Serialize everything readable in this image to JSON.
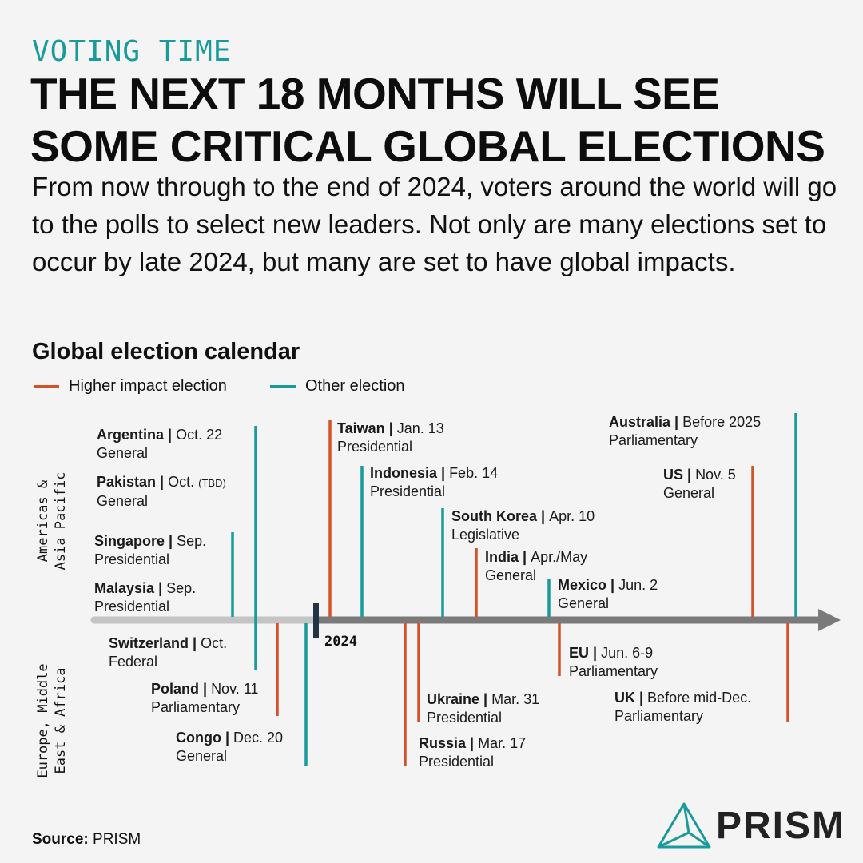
{
  "kicker": "VOTING TIME",
  "headline": {
    "line1": "THE NEXT 18 MONTHS WILL SEE",
    "line2": "SOME CRITICAL GLOBAL ELECTIONS"
  },
  "subtitle": "From now through to the end of 2024, voters around the world will go to the polls to select new leaders. Not only are many elections set to occur by late 2024, but many are set to have global impacts.",
  "calendar_title": "Global election calendar",
  "legend": {
    "higher": "Higher impact election",
    "other": "Other election"
  },
  "colors": {
    "higher": "#d2532a",
    "other": "#1a9a9a",
    "axis_before": "#c4c4c4",
    "axis_after": "#7a7a7a",
    "marker": "#243447"
  },
  "regions": {
    "top": [
      "Americas &",
      "Asia Pacific"
    ],
    "bottom": [
      "Europe, Middle",
      "East & Africa"
    ]
  },
  "year_marker": "2024",
  "elections": [
    {
      "id": "argentina",
      "country": "Argentina",
      "date": "Oct. 22",
      "type": "General",
      "impact": "other",
      "region": "top"
    },
    {
      "id": "pakistan",
      "country": "Pakistan",
      "date": "Oct.",
      "date_note": "(TBD)",
      "type": "General",
      "impact": "other",
      "region": "top"
    },
    {
      "id": "singapore",
      "country": "Singapore",
      "date": "Sep.",
      "type": "Presidential",
      "impact": "other",
      "region": "top"
    },
    {
      "id": "malaysia",
      "country": "Malaysia",
      "date": "Sep.",
      "type": "Presidential",
      "impact": "other",
      "region": "top"
    },
    {
      "id": "taiwan",
      "country": "Taiwan",
      "date": "Jan. 13",
      "type": "Presidential",
      "impact": "higher",
      "region": "top"
    },
    {
      "id": "indonesia",
      "country": "Indonesia",
      "date": "Feb. 14",
      "type": "Presidential",
      "impact": "other",
      "region": "top"
    },
    {
      "id": "south-korea",
      "country": "South Korea",
      "date": "Apr. 10",
      "type": "Legislative",
      "impact": "other",
      "region": "top"
    },
    {
      "id": "india",
      "country": "India",
      "date": "Apr./May",
      "type": "General",
      "impact": "higher",
      "region": "top"
    },
    {
      "id": "mexico",
      "country": "Mexico",
      "date": "Jun. 2",
      "type": "General",
      "impact": "other",
      "region": "top"
    },
    {
      "id": "australia",
      "country": "Australia",
      "date": "Before 2025",
      "type": "Parliamentary",
      "impact": "other",
      "region": "top"
    },
    {
      "id": "us",
      "country": "US",
      "date": "Nov. 5",
      "type": "General",
      "impact": "higher",
      "region": "top"
    },
    {
      "id": "switzerland",
      "country": "Switzerland",
      "date": "Oct.",
      "type": "Federal",
      "impact": "other",
      "region": "bottom"
    },
    {
      "id": "poland",
      "country": "Poland",
      "date": "Nov. 11",
      "type": "Parliamentary",
      "impact": "higher",
      "region": "bottom"
    },
    {
      "id": "congo",
      "country": "Congo",
      "date": "Dec. 20",
      "type": "General",
      "impact": "other",
      "region": "bottom"
    },
    {
      "id": "ukraine",
      "country": "Ukraine",
      "date": "Mar. 31",
      "type": "Presidential",
      "impact": "higher",
      "region": "bottom"
    },
    {
      "id": "russia",
      "country": "Russia",
      "date": "Mar. 17",
      "type": "Presidential",
      "impact": "higher",
      "region": "bottom"
    },
    {
      "id": "eu",
      "country": "EU",
      "date": "Jun. 6-9",
      "type": "Parliamentary",
      "impact": "higher",
      "region": "bottom"
    },
    {
      "id": "uk",
      "country": "UK",
      "date": "Before mid-Dec.",
      "type": "Parliamentary",
      "impact": "higher",
      "region": "bottom"
    }
  ],
  "source": {
    "label": "Source:",
    "value": "PRISM"
  },
  "logo": {
    "text": "PRISM",
    "icon": "prism-triangle-icon"
  }
}
